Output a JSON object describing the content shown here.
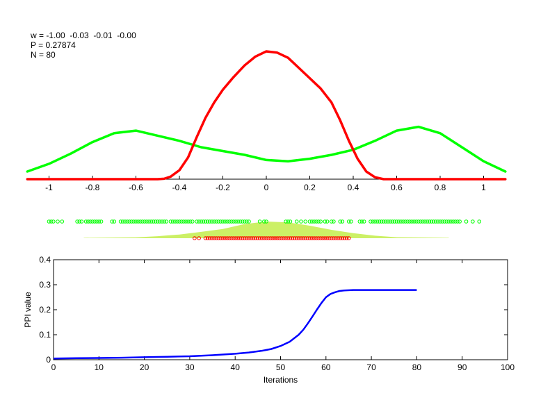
{
  "info": {
    "w_line": "w = -1.00  -0.03  -0.01  -0.00",
    "p_line": "P = 0.27874",
    "n_line": "N = 80"
  },
  "colors": {
    "class_a": "#ff0000",
    "class_b": "#00ff00",
    "weight_fill": "#ccf066",
    "ppi_curve": "#0000ff",
    "axes": "#000000"
  },
  "chart_data": [
    {
      "type": "line",
      "title": "",
      "xlabel": "",
      "ylabel": "",
      "xlim": [
        -1.1,
        1.1
      ],
      "xticks": [
        -1,
        -0.8,
        -0.6,
        -0.4,
        -0.2,
        0,
        0.2,
        0.4,
        0.6,
        0.8,
        1
      ],
      "xtick_labels": [
        "-1",
        "-0.8",
        "-0.6",
        "-0.4",
        "-0.2",
        "0",
        "0.2",
        "0.4",
        "0.6",
        "0.8",
        "1"
      ],
      "y_axis_visible": false,
      "grid": false,
      "series": [
        {
          "name": "red density",
          "color": "#ff0000",
          "x": [
            -1.1,
            -0.9,
            -0.5,
            -0.47,
            -0.44,
            -0.4,
            -0.36,
            -0.32,
            -0.28,
            -0.24,
            -0.2,
            -0.15,
            -0.1,
            -0.05,
            0,
            0.05,
            0.1,
            0.15,
            0.2,
            0.25,
            0.3,
            0.34,
            0.38,
            0.42,
            0.46,
            0.5,
            0.54,
            0.6,
            1.1
          ],
          "y": [
            0,
            0,
            0,
            0.003,
            0.02,
            0.07,
            0.17,
            0.33,
            0.48,
            0.6,
            0.7,
            0.8,
            0.89,
            0.96,
            1.0,
            0.99,
            0.95,
            0.87,
            0.79,
            0.71,
            0.6,
            0.46,
            0.3,
            0.16,
            0.06,
            0.015,
            0.0,
            0,
            0
          ]
        },
        {
          "name": "green density",
          "color": "#00ff00",
          "x": [
            -1.1,
            -1.0,
            -0.9,
            -0.8,
            -0.7,
            -0.6,
            -0.5,
            -0.4,
            -0.3,
            -0.2,
            -0.1,
            0,
            0.1,
            0.2,
            0.3,
            0.4,
            0.5,
            0.6,
            0.7,
            0.8,
            0.9,
            1.0,
            1.1
          ],
          "y": [
            0.06,
            0.12,
            0.2,
            0.29,
            0.36,
            0.38,
            0.34,
            0.3,
            0.25,
            0.22,
            0.19,
            0.15,
            0.14,
            0.16,
            0.19,
            0.23,
            0.3,
            0.38,
            0.41,
            0.36,
            0.25,
            0.14,
            0.06
          ]
        }
      ]
    },
    {
      "type": "scatter",
      "title": "",
      "note": "1-D sample positions (green and red circles) over a weight histogram area",
      "xlim": [
        -1.1,
        1.1
      ],
      "series": [
        {
          "name": "green samples",
          "color": "#00ff00",
          "marker": "circle-open",
          "x": [
            -1.0,
            -0.99,
            -0.98,
            -0.96,
            -0.94,
            -0.87,
            -0.86,
            -0.85,
            -0.83,
            -0.82,
            -0.81,
            -0.8,
            -0.79,
            -0.78,
            -0.77,
            -0.76,
            -0.71,
            -0.7,
            -0.67,
            -0.66,
            -0.65,
            -0.64,
            -0.63,
            -0.62,
            -0.61,
            -0.6,
            -0.59,
            -0.58,
            -0.57,
            -0.56,
            -0.55,
            -0.54,
            -0.53,
            -0.52,
            -0.51,
            -0.5,
            -0.49,
            -0.48,
            -0.47,
            -0.46,
            -0.44,
            -0.43,
            -0.42,
            -0.41,
            -0.4,
            -0.39,
            -0.38,
            -0.37,
            -0.36,
            -0.35,
            -0.34,
            -0.32,
            -0.31,
            -0.3,
            -0.29,
            -0.28,
            -0.27,
            -0.26,
            -0.25,
            -0.24,
            -0.23,
            -0.22,
            -0.21,
            -0.2,
            -0.19,
            -0.18,
            -0.17,
            -0.16,
            -0.15,
            -0.14,
            -0.13,
            -0.12,
            -0.11,
            -0.1,
            -0.09,
            -0.08,
            -0.03,
            -0.01,
            0.0,
            0.09,
            0.1,
            0.11,
            0.14,
            0.16,
            0.18,
            0.2,
            0.21,
            0.22,
            0.23,
            0.24,
            0.25,
            0.27,
            0.28,
            0.3,
            0.31,
            0.34,
            0.35,
            0.38,
            0.39,
            0.43,
            0.44,
            0.45,
            0.48,
            0.49,
            0.5,
            0.51,
            0.52,
            0.53,
            0.54,
            0.55,
            0.56,
            0.57,
            0.58,
            0.59,
            0.6,
            0.61,
            0.62,
            0.63,
            0.64,
            0.65,
            0.66,
            0.67,
            0.68,
            0.69,
            0.7,
            0.71,
            0.72,
            0.73,
            0.74,
            0.75,
            0.76,
            0.77,
            0.78,
            0.79,
            0.8,
            0.81,
            0.82,
            0.83,
            0.84,
            0.85,
            0.86,
            0.87,
            0.88,
            0.89,
            0.92,
            0.95,
            0.98
          ],
          "y_row": "upper"
        },
        {
          "name": "red samples",
          "color": "#ff0000",
          "marker": "circle-open",
          "x": [
            -0.33,
            -0.31,
            -0.28,
            -0.27,
            -0.26,
            -0.25,
            -0.24,
            -0.23,
            -0.22,
            -0.21,
            -0.2,
            -0.19,
            -0.18,
            -0.17,
            -0.16,
            -0.15,
            -0.14,
            -0.13,
            -0.12,
            -0.11,
            -0.1,
            -0.09,
            -0.08,
            -0.07,
            -0.06,
            -0.05,
            -0.04,
            -0.03,
            -0.02,
            -0.01,
            0.0,
            0.01,
            0.02,
            0.03,
            0.04,
            0.05,
            0.06,
            0.07,
            0.08,
            0.09,
            0.1,
            0.11,
            0.12,
            0.13,
            0.14,
            0.15,
            0.16,
            0.17,
            0.18,
            0.19,
            0.2,
            0.21,
            0.22,
            0.23,
            0.24,
            0.25,
            0.26,
            0.27,
            0.28,
            0.29,
            0.3,
            0.31,
            0.32,
            0.33,
            0.34,
            0.35,
            0.36,
            0.37,
            0.38
          ],
          "y_row": "lower"
        },
        {
          "name": "weight area",
          "color": "#ccf066",
          "type": "area",
          "x": [
            -0.84,
            -0.6,
            -0.5,
            -0.4,
            -0.3,
            -0.2,
            -0.1,
            0.0,
            0.1,
            0.2,
            0.3,
            0.4,
            0.5,
            0.6,
            0.84
          ],
          "y": [
            0.02,
            0.05,
            0.12,
            0.22,
            0.38,
            0.55,
            0.85,
            1.0,
            0.95,
            0.75,
            0.5,
            0.3,
            0.15,
            0.06,
            0.02
          ]
        }
      ]
    },
    {
      "type": "line",
      "title": "",
      "xlabel": "Iterations",
      "ylabel": "PPI value",
      "xlim": [
        0,
        100
      ],
      "ylim": [
        0,
        0.4
      ],
      "xticks": [
        0,
        10,
        20,
        30,
        40,
        50,
        60,
        70,
        80,
        90,
        100
      ],
      "xtick_labels": [
        "0",
        "10",
        "20",
        "30",
        "40",
        "50",
        "60",
        "70",
        "80",
        "90",
        "100"
      ],
      "yticks": [
        0,
        0.1,
        0.2,
        0.3,
        0.4
      ],
      "ytick_labels": [
        "0",
        "0.1",
        "0.2",
        "0.3",
        "0.4"
      ],
      "grid": false,
      "series": [
        {
          "name": "PPI value",
          "color": "#0000ff",
          "x": [
            0,
            5,
            10,
            15,
            20,
            25,
            30,
            35,
            40,
            43,
            46,
            48,
            50,
            52,
            54,
            55,
            56,
            57,
            58,
            59,
            60,
            61,
            62,
            63,
            64,
            66,
            70,
            75,
            80
          ],
          "y": [
            0.005,
            0.006,
            0.007,
            0.008,
            0.01,
            0.012,
            0.014,
            0.018,
            0.024,
            0.029,
            0.036,
            0.043,
            0.055,
            0.072,
            0.1,
            0.12,
            0.145,
            0.172,
            0.2,
            0.227,
            0.25,
            0.263,
            0.27,
            0.275,
            0.277,
            0.279,
            0.279,
            0.279,
            0.279
          ]
        }
      ]
    }
  ]
}
